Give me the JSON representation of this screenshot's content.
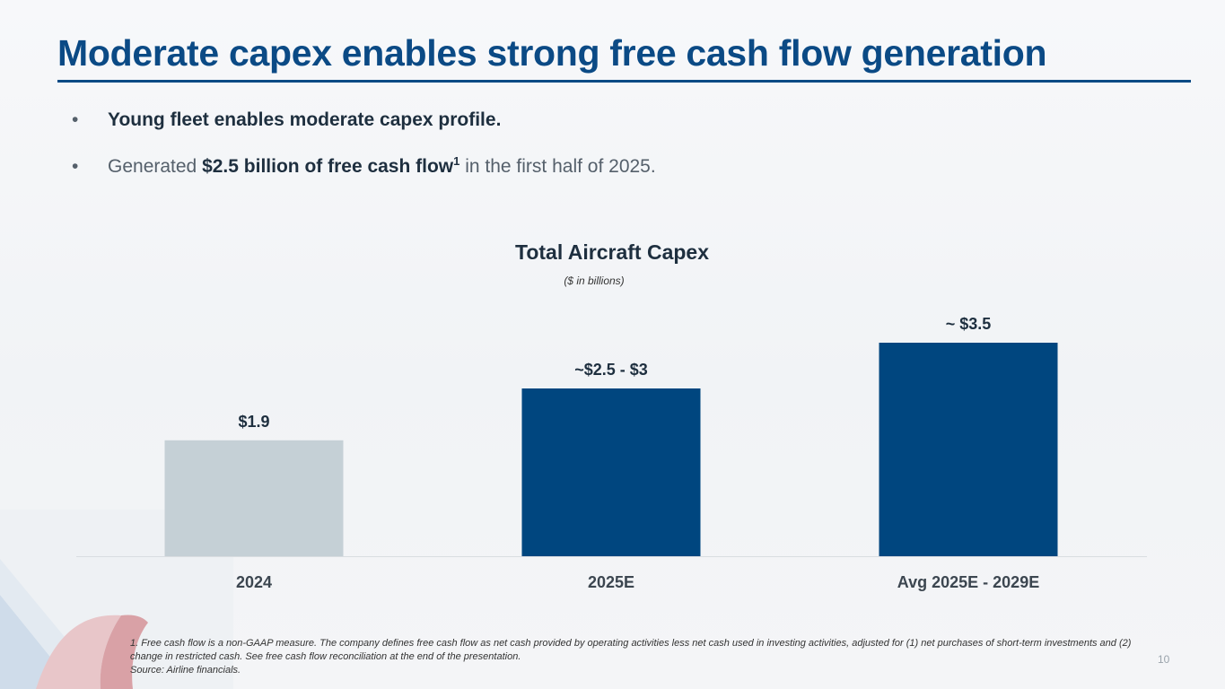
{
  "slide": {
    "title": "Moderate capex enables strong free cash flow generation",
    "page_number": "10"
  },
  "bullets": [
    {
      "bold": "Young fleet enables moderate capex profile",
      "rest": "."
    },
    {
      "pre": "Generated ",
      "bold": "$2.5 billion of free cash flow",
      "sup": "1",
      "post": " in the first half of 2025."
    }
  ],
  "chart_data": {
    "type": "bar",
    "title": "Total Aircraft Capex",
    "subtitle": "($ in billions)",
    "categories": [
      "2024",
      "2025E",
      "Avg 2025E - 2029E"
    ],
    "values": [
      1.9,
      2.75,
      3.5
    ],
    "data_labels": [
      "$1.9",
      "~$2.5 - $3",
      "~ $3.5"
    ],
    "colors": [
      "#c5d0d6",
      "#00467f",
      "#00467f"
    ],
    "xlabel": "",
    "ylabel": "",
    "ylim": [
      0,
      4
    ],
    "grid": false
  },
  "footnotes": [
    "1. Free cash flow is a non-GAAP measure. The company defines free cash flow as net cash provided by operating activities less net cash used in investing activities, adjusted for (1) net purchases of short-term investments and (2) change in restricted cash. See free cash flow reconciliation at the end of the presentation.",
    "Source: Airline financials."
  ],
  "theme": {
    "brand_blue": "#0b4a85",
    "bar_gray": "#c5d0d6",
    "bar_blue": "#00467f"
  }
}
